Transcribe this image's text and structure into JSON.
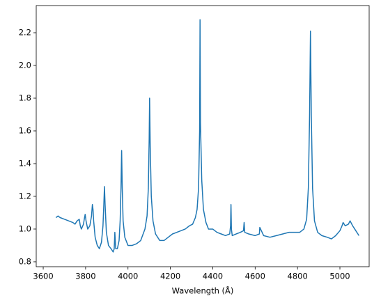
{
  "chart_data": {
    "type": "line",
    "xlabel": "Wavelength (Å)",
    "color": "#1f77b4",
    "x": [
      3660,
      3670,
      3680,
      3700,
      3720,
      3740,
      3750,
      3760,
      3770,
      3775,
      3780,
      3790,
      3795,
      3798,
      3802,
      3810,
      3820,
      3828,
      3832,
      3835,
      3838,
      3845,
      3855,
      3865,
      3875,
      3882,
      3886,
      3889,
      3892,
      3898,
      3908,
      3920,
      3930,
      3935,
      3938,
      3942,
      3950,
      3958,
      3963,
      3967,
      3970,
      3973,
      3977,
      3985,
      4000,
      4020,
      4040,
      4060,
      4080,
      4090,
      4096,
      4100,
      4102,
      4105,
      4110,
      4118,
      4130,
      4150,
      4170,
      4190,
      4210,
      4230,
      4250,
      4270,
      4290,
      4305,
      4318,
      4326,
      4333,
      4338,
      4340,
      4342,
      4348,
      4356,
      4368,
      4380,
      4400,
      4420,
      4440,
      4460,
      4480,
      4484,
      4486,
      4488,
      4492,
      4510,
      4530,
      4545,
      4548,
      4551,
      4570,
      4600,
      4620,
      4622,
      4640,
      4670,
      4700,
      4730,
      4760,
      4790,
      4810,
      4830,
      4843,
      4851,
      4857,
      4861,
      4865,
      4871,
      4880,
      4895,
      4915,
      4940,
      4960,
      4980,
      5000,
      5010,
      5015,
      5025,
      5040,
      5048,
      5060,
      5075,
      5085,
      5090
    ],
    "values": [
      1.07,
      1.08,
      1.07,
      1.06,
      1.05,
      1.04,
      1.03,
      1.05,
      1.06,
      1.02,
      1.0,
      1.03,
      1.07,
      1.09,
      1.05,
      1.0,
      1.02,
      1.08,
      1.15,
      1.12,
      1.05,
      0.95,
      0.9,
      0.88,
      0.92,
      1.02,
      1.15,
      1.26,
      1.15,
      0.98,
      0.9,
      0.88,
      0.86,
      0.88,
      0.98,
      0.88,
      0.88,
      0.93,
      1.05,
      1.25,
      1.48,
      1.25,
      1.05,
      0.95,
      0.9,
      0.9,
      0.91,
      0.93,
      1.0,
      1.08,
      1.25,
      1.55,
      1.8,
      1.5,
      1.2,
      1.05,
      0.97,
      0.93,
      0.93,
      0.95,
      0.97,
      0.98,
      0.99,
      1.0,
      1.02,
      1.03,
      1.07,
      1.12,
      1.25,
      1.6,
      2.28,
      1.65,
      1.3,
      1.12,
      1.04,
      1.0,
      1.0,
      0.98,
      0.97,
      0.96,
      0.97,
      1.02,
      1.15,
      1.0,
      0.96,
      0.97,
      0.98,
      0.99,
      1.04,
      0.98,
      0.97,
      0.96,
      0.97,
      1.01,
      0.96,
      0.95,
      0.96,
      0.97,
      0.98,
      0.98,
      0.98,
      1.0,
      1.06,
      1.25,
      1.7,
      2.21,
      1.7,
      1.25,
      1.05,
      0.98,
      0.96,
      0.95,
      0.94,
      0.96,
      0.99,
      1.02,
      1.04,
      1.02,
      1.03,
      1.05,
      1.02,
      0.99,
      0.97,
      0.96
    ],
    "xlim": [
      3567,
      5138
    ],
    "ylim": [
      0.77,
      2.366
    ],
    "xticks": [
      3600,
      3800,
      4000,
      4200,
      4400,
      4600,
      4800,
      5000
    ],
    "yticks": [
      0.8,
      {
        "value": 1.0,
        "label": "1.0"
      },
      1.2,
      1.4,
      1.6,
      1.8,
      {
        "value": 2.0,
        "label": "2.0"
      },
      2.2
    ]
  }
}
